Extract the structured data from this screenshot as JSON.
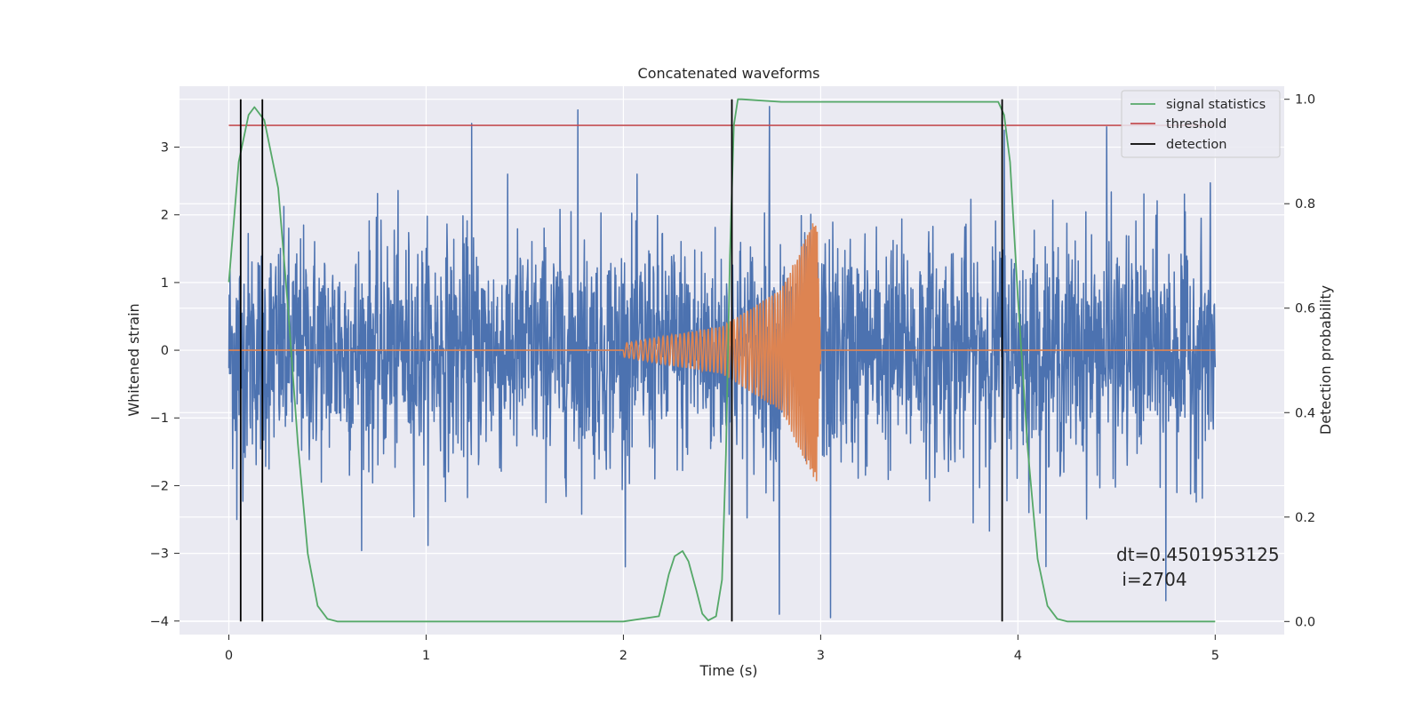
{
  "chart_data": {
    "type": "line",
    "title": "Concatenated waveforms",
    "xlabel": "Time (s)",
    "ylabel_left": "Whitened strain",
    "ylabel_right": "Detection probability",
    "xlim": [
      -0.25,
      5.35
    ],
    "ylim_left": [
      -4.2,
      3.9
    ],
    "ylim_right": [
      -0.025,
      1.025
    ],
    "x_ticks": [
      0,
      1,
      2,
      3,
      4,
      5
    ],
    "y_left_ticks": [
      -4,
      -3,
      -2,
      -1,
      0,
      1,
      2,
      3
    ],
    "y_right_ticks": [
      0.0,
      0.2,
      0.4,
      0.6,
      0.8,
      1.0
    ],
    "grid": true,
    "legend_position": "top-right",
    "colors": {
      "noise": "#4c72b0",
      "injected_waveform": "#dd8452",
      "signal_statistics": "#55a868",
      "threshold": "#c44e52",
      "detection": "#000000",
      "axes_background": "#eaeaf2",
      "grid": "#ffffff"
    },
    "series": [
      {
        "kind": "whitened-noise",
        "axis": "left",
        "x_range": [
          0,
          5
        ],
        "approx_std": 0.85,
        "approx_extremes": [
          [
            0.04,
            -2.5
          ],
          [
            1.23,
            3.35
          ],
          [
            1.77,
            3.55
          ],
          [
            2.74,
            3.6
          ],
          [
            2.79,
            -3.9
          ],
          [
            3.05,
            -3.95
          ],
          [
            3.93,
            3.25
          ],
          [
            4.45,
            3.3
          ],
          [
            4.75,
            -3.7
          ]
        ]
      },
      {
        "kind": "injected-chirp",
        "axis": "left",
        "x": [
          0,
          2,
          2.5,
          2.8,
          2.98,
          3.0,
          5
        ],
        "amplitude": [
          0,
          0.1,
          0.35,
          0.9,
          2.0,
          0,
          0
        ]
      },
      {
        "name": "signal statistics",
        "axis": "right",
        "x": [
          0.0,
          0.05,
          0.1,
          0.13,
          0.18,
          0.25,
          0.3,
          0.35,
          0.4,
          0.45,
          0.5,
          0.55,
          2.0,
          2.18,
          2.2,
          2.23,
          2.26,
          2.3,
          2.33,
          2.37,
          2.4,
          2.43,
          2.47,
          2.5,
          2.52,
          2.54,
          2.56,
          2.58,
          2.6,
          2.8,
          3.9,
          3.93,
          3.96,
          4.0,
          4.05,
          4.1,
          4.15,
          4.2,
          4.25,
          5.0
        ],
        "y": [
          0.65,
          0.88,
          0.97,
          0.985,
          0.96,
          0.83,
          0.6,
          0.34,
          0.13,
          0.03,
          0.005,
          0.0,
          0.0,
          0.01,
          0.04,
          0.09,
          0.125,
          0.135,
          0.115,
          0.06,
          0.015,
          0.002,
          0.01,
          0.08,
          0.32,
          0.7,
          0.95,
          1.0,
          1.0,
          0.995,
          0.995,
          0.97,
          0.88,
          0.62,
          0.33,
          0.12,
          0.03,
          0.005,
          0.0,
          0.0
        ]
      },
      {
        "name": "threshold",
        "axis": "right",
        "x": [
          0,
          5
        ],
        "y": [
          0.95,
          0.95
        ]
      },
      {
        "name": "detection",
        "axis": "right",
        "type": "vlines",
        "x": [
          0.06,
          0.17,
          2.55,
          3.92
        ],
        "ymin": 0.0,
        "ymax": 1.0
      }
    ],
    "annotation": {
      "line1": "dt=0.4501953125",
      "line2": " i=2704"
    }
  }
}
